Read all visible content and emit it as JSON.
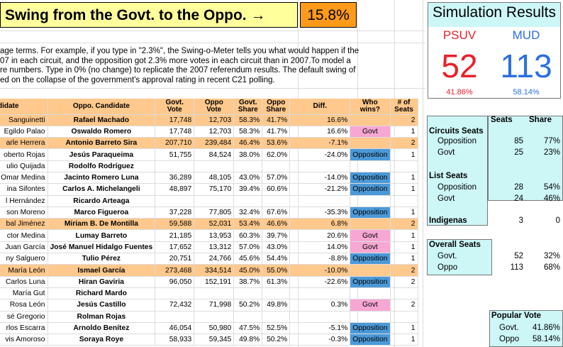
{
  "header": {
    "title": "Swing from the Govt. to the Oppo. →",
    "swing_value": "15.8%"
  },
  "description": [
    "age terms. For example, if you type in \"2.3%\", the Swing-o-Meter tells you what would happen if the",
    "07 in each circuit, and the opposition got 2.3% more votes in each circuit than in 2007.To model a",
    "re numbers. Type in 0% (no change) to replicate the 2007 referendum results. The default swing of",
    "ed on the collapse of the government's approval rating in recent C21 polling."
  ],
  "simulation": {
    "title": "Simulation Results",
    "govt_party": "PSUV",
    "govt_seats": "52",
    "govt_share": "41.86%",
    "opp_party": "MUD",
    "opp_seats": "113",
    "opp_share": "58.14%"
  },
  "table": {
    "headers": [
      "didate",
      "Oppo. Candidate",
      "Govt. Vote",
      "Oppo Vote",
      "Govt. Share",
      "Oppo Share",
      "Diff.",
      "Who wins?",
      "# of Seats"
    ],
    "rows": [
      {
        "govt": "Sanguinetti",
        "opp": "Rafael Machado",
        "gv": "17,748",
        "ov": "12,703",
        "gs": "58.3%",
        "os": "41.7%",
        "diff": "16.6%",
        "who": "",
        "seats": "2",
        "hl": true
      },
      {
        "govt": "Egildo Palao",
        "opp": "Oswaldo Romero",
        "gv": "17,748",
        "ov": "12,703",
        "gs": "58.3%",
        "os": "41.7%",
        "diff": "16.6%",
        "who": "Govt",
        "seats": "1",
        "hl": false
      },
      {
        "govt": "arle Herrera",
        "opp": "Antonio Barreto Sira",
        "gv": "207,710",
        "ov": "239,484",
        "gs": "46.4%",
        "os": "53.6%",
        "diff": "-7.1%",
        "who": "",
        "seats": "2",
        "hl": true
      },
      {
        "govt": "oberto Rojas",
        "opp": "Jesús Paraqueima",
        "gv": "51,755",
        "ov": "84,524",
        "gs": "38.0%",
        "os": "62.0%",
        "diff": "-24.0%",
        "who": "Opposition",
        "seats": "1",
        "hl": false
      },
      {
        "govt": "ulio Quijada",
        "opp": "Rodolfo Rodríguez",
        "gv": "",
        "ov": "",
        "gs": "",
        "os": "",
        "diff": "",
        "who": "",
        "seats": "",
        "hl": false
      },
      {
        "govt": "Omar Medina",
        "opp": "Jacinto Romero Luna",
        "gv": "36,289",
        "ov": "48,105",
        "gs": "43.0%",
        "os": "57.0%",
        "diff": "-14.0%",
        "who": "Opposition",
        "seats": "1",
        "hl": false
      },
      {
        "govt": "ina Sifontes",
        "opp": "Carlos A. Michelangeli",
        "gv": "48,897",
        "ov": "75,170",
        "gs": "39.4%",
        "os": "60.6%",
        "diff": "-21.2%",
        "who": "Opposition",
        "seats": "1",
        "hl": false
      },
      {
        "govt": "l Hernández",
        "opp": "Ricardo Arteaga",
        "gv": "",
        "ov": "",
        "gs": "",
        "os": "",
        "diff": "",
        "who": "",
        "seats": "",
        "hl": false
      },
      {
        "govt": "son Moreno",
        "opp": "Marco Figueroa",
        "gv": "37,228",
        "ov": "77,805",
        "gs": "32.4%",
        "os": "67.6%",
        "diff": "-35.3%",
        "who": "Opposition",
        "seats": "1",
        "hl": false
      },
      {
        "govt": "bal Jiménez",
        "opp": "Miriam B. De Montilla",
        "gv": "59,588",
        "ov": "52,031",
        "gs": "53.4%",
        "os": "46.6%",
        "diff": "6.8%",
        "who": "",
        "seats": "2",
        "hl": true
      },
      {
        "govt": "ctor Medina",
        "opp": "Lumay Barreto",
        "gv": "21,185",
        "ov": "13,953",
        "gs": "60.3%",
        "os": "39.7%",
        "diff": "20.6%",
        "who": "Govt",
        "seats": "1",
        "hl": false
      },
      {
        "govt": "Juan García",
        "opp": "José Manuel Hidalgo Fuentes",
        "gv": "17,652",
        "ov": "13,312",
        "gs": "57.0%",
        "os": "43.0%",
        "diff": "14.0%",
        "who": "Govt",
        "seats": "1",
        "hl": false
      },
      {
        "govt": "ny Salguero",
        "opp": "Tulio Pérez",
        "gv": "20,751",
        "ov": "24,766",
        "gs": "45.6%",
        "os": "54.4%",
        "diff": "-8.8%",
        "who": "Opposition",
        "seats": "1",
        "hl": false
      },
      {
        "govt": "María León",
        "opp": "Ismael García",
        "gv": "273,468",
        "ov": "334,514",
        "gs": "45.0%",
        "os": "55.0%",
        "diff": "-10.0%",
        "who": "",
        "seats": "2",
        "hl": true
      },
      {
        "govt": "Carlos Luna",
        "opp": "Hiran Gaviria",
        "gv": "96,050",
        "ov": "152,191",
        "gs": "38.7%",
        "os": "61.3%",
        "diff": "-22.6%",
        "who": "Opposition",
        "seats": "2",
        "hl": false
      },
      {
        "govt": "María Gut",
        "opp": "Richard Mardo",
        "gv": "",
        "ov": "",
        "gs": "",
        "os": "",
        "diff": "",
        "who": "",
        "seats": "",
        "hl": false
      },
      {
        "govt": "Rosa León",
        "opp": "Jesús Castillo",
        "gv": "72,432",
        "ov": "71,998",
        "gs": "50.2%",
        "os": "49.8%",
        "diff": "0.3%",
        "who": "Govt",
        "seats": "2",
        "hl": false
      },
      {
        "govt": "sé Gregorio",
        "opp": "Rolman Rojas",
        "gv": "",
        "ov": "",
        "gs": "",
        "os": "",
        "diff": "",
        "who": "",
        "seats": "",
        "hl": false
      },
      {
        "govt": "rlos Escarra",
        "opp": "Arnoldo Benítez",
        "gv": "46,054",
        "ov": "50,980",
        "gs": "47.5%",
        "os": "52.5%",
        "diff": "-5.1%",
        "who": "Opposition",
        "seats": "1",
        "hl": false
      },
      {
        "govt": "vis Amoroso",
        "opp": "Soraya Roye",
        "gv": "58,933",
        "ov": "59,345",
        "gs": "49.8%",
        "os": "50.2%",
        "diff": "-0.3%",
        "who": "Opposition",
        "seats": "1",
        "hl": false
      }
    ]
  },
  "seat_panel": {
    "col_seats": "Seats",
    "col_share": "Share",
    "circuits": {
      "label": "Circuits Seats",
      "opp_label": "Opposition",
      "opp_seats": "85",
      "opp_share": "77%",
      "govt_label": "Govt",
      "govt_seats": "25",
      "govt_share": "23%"
    },
    "list": {
      "label": "List Seats",
      "opp_label": "Opposition",
      "opp_seats": "28",
      "opp_share": "54%",
      "govt_label": "Govt",
      "govt_seats": "24",
      "govt_share": "46%"
    },
    "indigenas": {
      "label": "Indigenas",
      "seats": "3",
      "share": "0"
    }
  },
  "overall": {
    "label": "Overall Seats",
    "govt_label": "Govt.",
    "govt_seats": "52",
    "govt_share": "32%",
    "opp_label": "Oppo",
    "opp_seats": "113",
    "opp_share": "68%"
  },
  "popular": {
    "label": "Popular Vote",
    "govt_label": "Govt.",
    "govt_share": "41.86%",
    "opp_label": "Oppo",
    "opp_share": "58.14%"
  },
  "colors": {
    "title_bg": "#ffff9c",
    "swing_bg": "#ff9a1a",
    "panel_bg": "#cdf6f7",
    "header_bg": "#ffc88c",
    "govt_red": "#e8212a",
    "opp_blue": "#2b6fe0",
    "govt_pink": "#f7a7d3",
    "opp_cell": "#4c99d8"
  }
}
